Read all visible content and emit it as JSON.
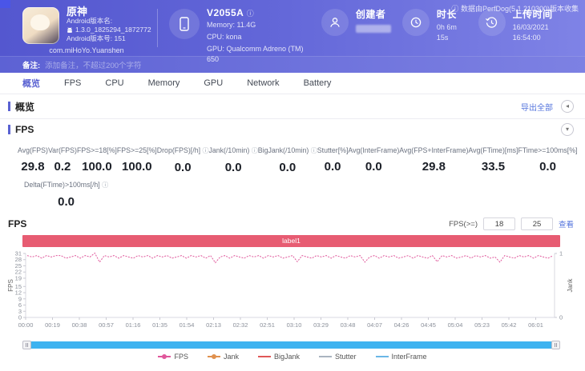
{
  "header": {
    "top_note": "数据由PerfDog(5.1.210300)版本收集",
    "app": {
      "title": "原神",
      "version_name_label": "Android版本名:",
      "version_name": "1.3.0_1825294_1872772",
      "version_code": "Android版本号: 151",
      "package": "com.miHoYo.Yuanshen"
    },
    "device": {
      "model": "V2055A",
      "memory": "Memory: 11.4G",
      "cpu": "CPU: kona",
      "gpu": "GPU: Qualcomm Adreno (TM) 650"
    },
    "creator": {
      "label": "创建者"
    },
    "duration": {
      "label": "时长",
      "value": "0h 6m 15s"
    },
    "upload": {
      "label": "上传时间",
      "value": "16/03/2021 16:54:00"
    },
    "remark": {
      "label": "备注:",
      "placeholder": "添加备注，不超过200个字符"
    }
  },
  "tabs": {
    "items": [
      "概览",
      "FPS",
      "CPU",
      "Memory",
      "GPU",
      "Network",
      "Battery"
    ],
    "active_index": 0
  },
  "overview": {
    "title": "概览",
    "export_label": "导出全部"
  },
  "fps_section": {
    "title": "FPS",
    "metrics": [
      {
        "label": "Avg(FPS)",
        "value": "29.8",
        "info": false
      },
      {
        "label": "Var(FPS)",
        "value": "0.2",
        "info": false
      },
      {
        "label": "FPS>=18[%]",
        "value": "100.0",
        "info": false
      },
      {
        "label": "FPS>=25[%]",
        "value": "100.0",
        "info": false
      },
      {
        "label": "Drop(FPS)[/h]",
        "value": "0.0",
        "info": true
      },
      {
        "label": "Jank(/10min)",
        "value": "0.0",
        "info": true
      },
      {
        "label": "BigJank(/10min)",
        "value": "0.0",
        "info": true
      },
      {
        "label": "Stutter[%]",
        "value": "0.0",
        "info": false
      },
      {
        "label": "Avg(InterFrame)",
        "value": "0.0",
        "info": false
      },
      {
        "label": "Avg(FPS+InterFrame)",
        "value": "29.8",
        "info": false
      },
      {
        "label": "Avg(FTime)[ms]",
        "value": "33.5",
        "info": false
      },
      {
        "label": "FTime>=100ms[%]",
        "value": "0.0",
        "info": false
      }
    ],
    "extra_metric": {
      "label": "Delta(FTime)>100ms[/h]",
      "value": "0.0",
      "info": true
    },
    "chart_label": "FPS",
    "threshold": {
      "label": "FPS(>=)",
      "low": "18",
      "high": "25",
      "action": "查看"
    }
  },
  "chart_data": {
    "type": "line",
    "banner_label": "label1",
    "ylabel_left": "FPS",
    "ylabel_right": "Jank",
    "y_left_range": [
      0,
      31
    ],
    "y_left_ticks": [
      0,
      3,
      6,
      9,
      12,
      15,
      19,
      22,
      25,
      28,
      31
    ],
    "y_right_range": [
      0,
      1
    ],
    "y_right_ticks": [
      0,
      1
    ],
    "x_ticks": [
      "00:00",
      "00:19",
      "00:38",
      "00:57",
      "01:16",
      "01:35",
      "01:54",
      "02:13",
      "02:32",
      "02:51",
      "03:10",
      "03:29",
      "03:48",
      "04:07",
      "04:26",
      "04:45",
      "05:04",
      "05:23",
      "05:42",
      "06:01"
    ],
    "grid": false,
    "legend_position": "bottom",
    "legend": [
      {
        "name": "FPS",
        "color": "#e0579b",
        "marker": true
      },
      {
        "name": "Jank",
        "color": "#e0914e",
        "marker": true
      },
      {
        "name": "BigJank",
        "color": "#e05757",
        "marker": false
      },
      {
        "name": "Stutter",
        "color": "#aab4c0",
        "marker": false
      },
      {
        "name": "InterFrame",
        "color": "#6ab7e6",
        "marker": false
      }
    ],
    "series": [
      {
        "name": "FPS",
        "color": "#e0579b",
        "values": [
          30,
          29.3,
          30,
          28.7,
          30,
          29.3,
          30,
          30,
          28.7,
          29.3,
          30,
          28.7,
          30,
          29.3,
          31.2,
          26.8,
          30,
          29.3,
          30,
          28.7,
          30,
          29.3,
          28.7,
          30,
          29.3,
          30,
          28.7,
          30,
          29.3,
          30,
          28.7,
          29.3,
          30,
          28.7,
          30,
          29.3,
          30,
          28.7,
          30,
          26.5,
          29.3,
          30,
          28.7,
          30,
          29.3,
          28.7,
          30,
          29.3,
          30,
          28.7,
          30,
          29.3,
          30,
          28.7,
          29.3,
          30,
          27.0,
          30,
          29.3,
          28.7,
          30,
          29.3,
          30,
          28.7,
          30,
          29.3,
          28.7,
          30,
          29.3,
          30,
          26.8,
          29.3,
          30,
          28.7,
          30,
          29.3,
          30,
          28.7,
          29.3,
          30,
          28.7,
          30,
          29.3,
          28.7,
          30,
          27.0,
          30,
          29.3,
          30,
          28.7,
          29.3,
          30,
          28.7,
          30,
          29.3,
          30,
          28.7,
          29.3,
          26.8,
          30,
          29.3,
          28.7,
          30,
          29.3,
          30,
          28.7,
          30,
          29.3,
          28.7,
          30
        ]
      }
    ]
  }
}
